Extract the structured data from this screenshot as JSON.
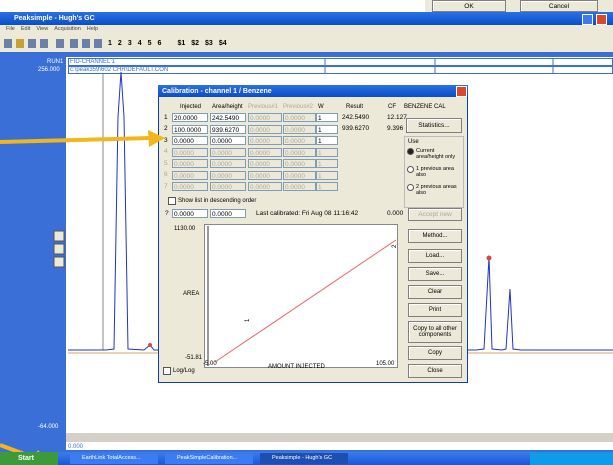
{
  "top_dialog": {
    "ok": "OK",
    "cancel": "Cancel"
  },
  "window": {
    "title": "Peaksimple - Hugh's GC",
    "menu": [
      "File",
      "Edit",
      "View",
      "Acquisition",
      "Help"
    ],
    "toolbar_numbers": [
      "1",
      "2",
      "3",
      "4",
      "5",
      "6"
    ],
    "toolbar_s": [
      "$1",
      "$2",
      "$3",
      "$4"
    ]
  },
  "chromatogram": {
    "run": "RUN1",
    "channel": "FID-CHANNEL 1",
    "y_max": "256.000",
    "file": "c:\\peak359\\602 CHR\\DEFAULT.CON",
    "y_min": "-64.000",
    "x_start": "0.000"
  },
  "dialog": {
    "title": "Calibration - channel 1 / Benzene",
    "headers": [
      "Injected",
      "Area/height",
      "Previous#1",
      "Previous#2",
      "W",
      "Result",
      "CF"
    ],
    "component": "BENZENE CAL",
    "rows": [
      {
        "n": "1",
        "cells": [
          "20.0000",
          "242.5490",
          "0.0000",
          "0.0000",
          "1"
        ],
        "result": "242.5490",
        "cf": "12.127"
      },
      {
        "n": "2",
        "cells": [
          "100.0000",
          "939.6270",
          "0.0000",
          "0.0000",
          "1"
        ],
        "result": "939.6270",
        "cf": "9.396"
      },
      {
        "n": "3",
        "cells": [
          "0.0000",
          "0.0000",
          "0.0000",
          "0.0000",
          "1"
        ]
      },
      {
        "n": "4",
        "cells": [
          "0.0000",
          "0.0000",
          "0.0000",
          "0.0000",
          "1"
        ]
      },
      {
        "n": "5",
        "cells": [
          "0.0000",
          "0.0000",
          "0.0000",
          "0.0000",
          "1"
        ]
      },
      {
        "n": "6",
        "cells": [
          "0.0000",
          "0.0000",
          "0.0000",
          "0.0000",
          "1"
        ]
      },
      {
        "n": "7",
        "cells": [
          "0.0000",
          "0.0000",
          "0.0000",
          "0.0000",
          "1"
        ]
      }
    ],
    "statistics": "Statistics...",
    "use": "Use",
    "use_options": [
      "Current area/height only",
      "1 previous area also",
      "2 previous areas also"
    ],
    "descending": "Show list in descending order",
    "new_row": {
      "n": "?",
      "injected": "0.0000",
      "area": "0.0000",
      "last": "Last calibrated:  Fri Aug 08 11:16:42",
      "result": "0.000",
      "accept": "Accept new"
    },
    "plot": {
      "y_max": "1130.00",
      "y_label": "AREA",
      "y_min": "-51.81",
      "x_min": "-5.00",
      "x_label": "AMOUNT INJECTED",
      "x_max": "105.00",
      "points": [
        "1",
        "2"
      ],
      "loglog": "Log/Log"
    },
    "buttons": [
      "Method...",
      "Load...",
      "Save...",
      "Clear",
      "Print",
      "Copy to all other components",
      "Copy",
      "Close"
    ]
  },
  "taskbar": {
    "start": "Start",
    "items": [
      "EarthLink TotalAccess...",
      "PeakSimpleCalibration...",
      "Peaksimple - Hugh's GC"
    ]
  }
}
